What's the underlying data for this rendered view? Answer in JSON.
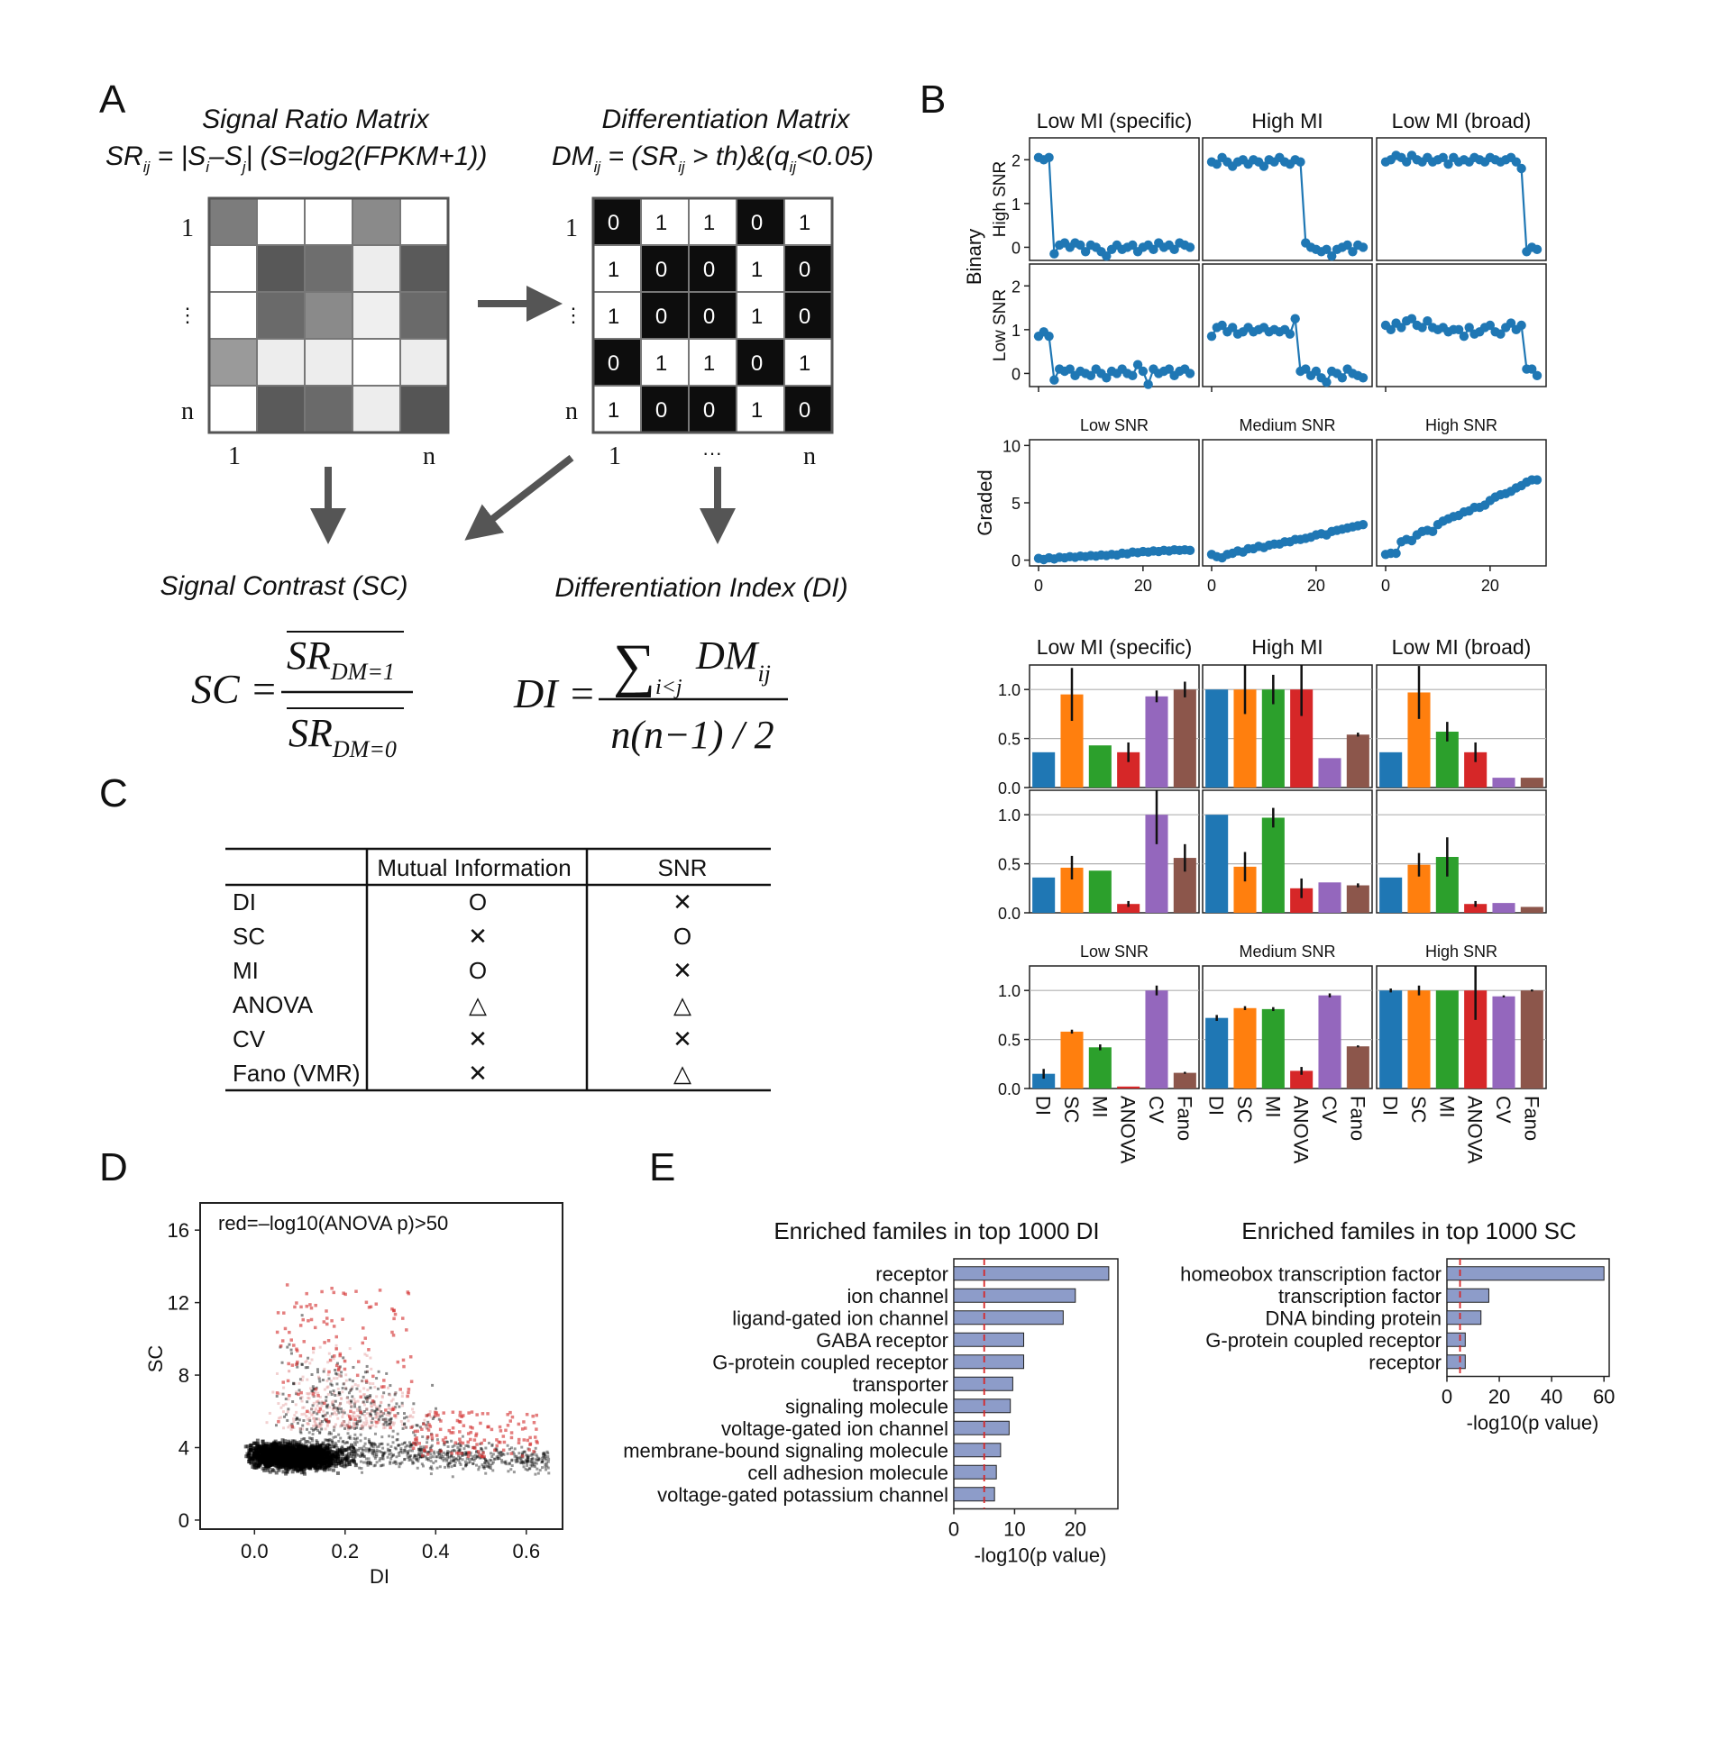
{
  "panels": {
    "A": "A",
    "B": "B",
    "C": "C",
    "D": "D",
    "E": "E"
  },
  "panel_a": {
    "sr_title": "Signal Ratio Matrix",
    "sr_formula": {
      "lhs": "SR",
      "lhs_sub": "ij",
      "mid": " = |S",
      "s1": "i",
      "minus": "–S",
      "s2": "j",
      "rest": "| (S=log2(FPKM+1))"
    },
    "dm_title": "Differentiation Matrix",
    "dm_formula": {
      "lhs": "DM",
      "lhs_sub": "ij",
      "mid": " = (SR",
      "sub2": "ij",
      "rest": " > th)&(q",
      "sub3": "ij",
      "end": "<0.05)"
    },
    "sr_grid": [
      [
        "#7c7c7c",
        "#ffffff",
        "#ffffff",
        "#8a8a8a",
        "#ffffff"
      ],
      [
        "#ffffff",
        "#585858",
        "#6e6e6e",
        "#ededed",
        "#5a5a5a"
      ],
      [
        "#ffffff",
        "#6a6a6a",
        "#8a8a8a",
        "#efefef",
        "#6a6a6a"
      ],
      [
        "#9a9a9a",
        "#ededed",
        "#ededed",
        "#ffffff",
        "#ededed"
      ],
      [
        "#ffffff",
        "#5a5a5a",
        "#6a6a6a",
        "#ededed",
        "#555555"
      ]
    ],
    "dm_grid": [
      [
        "0",
        "1",
        "1",
        "0",
        "1"
      ],
      [
        "1",
        "0",
        "0",
        "1",
        "0"
      ],
      [
        "1",
        "0",
        "0",
        "1",
        "0"
      ],
      [
        "0",
        "1",
        "1",
        "0",
        "1"
      ],
      [
        "1",
        "0",
        "0",
        "1",
        "0"
      ]
    ],
    "row_labels": [
      "1",
      "⋮",
      "n"
    ],
    "col_labels_sr": [
      "1",
      "n"
    ],
    "col_labels_dm": [
      "1",
      "···",
      "n"
    ],
    "sc_title": "Signal Contrast (SC)",
    "di_title": "Differentiation Index (DI)",
    "sc_formula": {
      "lhs": "SC =",
      "num": "SR",
      "num_sub": "DM=1",
      "den": "SR",
      "den_sub": "DM=0"
    },
    "di_formula": {
      "lhs": "DI =",
      "sum": "∑",
      "sum_sub": "i<j",
      "num": "DM",
      "num_sub": "ij",
      "den": "n(n−1) / 2"
    }
  },
  "panel_c": {
    "headers": [
      "",
      "Mutual Information",
      "SNR"
    ],
    "rows": [
      {
        "name": "DI",
        "mi": "O",
        "snr": "✕"
      },
      {
        "name": "SC",
        "mi": "✕",
        "snr": "O"
      },
      {
        "name": "MI",
        "mi": "O",
        "snr": "✕"
      },
      {
        "name": "ANOVA",
        "mi": "△",
        "snr": "△"
      },
      {
        "name": "CV",
        "mi": "✕",
        "snr": "✕"
      },
      {
        "name": "Fano (VMR)",
        "mi": "✕",
        "snr": "△"
      }
    ]
  },
  "chart_data": [
    {
      "id": "B-binary-line",
      "type": "line",
      "columns": [
        "Low MI (specific)",
        "High MI",
        "Low MI (broad)"
      ],
      "rows": [
        "High SNR",
        "Low SNR"
      ],
      "group_label": "Binary",
      "ylim": [
        -0.3,
        2.5
      ],
      "yticks": [
        0,
        1,
        2
      ],
      "x": [
        0,
        1,
        2,
        3,
        4,
        5,
        6,
        7,
        8,
        9,
        10,
        11,
        12,
        13,
        14,
        15,
        16,
        17,
        18,
        19,
        20,
        21,
        22,
        23,
        24,
        25,
        26,
        27,
        28,
        29
      ],
      "series": [
        {
          "values": [
            2.05,
            2.0,
            2.05,
            -0.15,
            0.05,
            0.1,
            0.0,
            0.1,
            0.05,
            -0.1,
            0.05,
            0.0,
            -0.1,
            -0.2,
            -0.05,
            0.05,
            -0.05,
            0.0,
            0.05,
            -0.1,
            0.0,
            0.05,
            -0.05,
            0.1,
            0.0,
            0.05,
            -0.05,
            0.1,
            0.05,
            0.0
          ]
        },
        {
          "values": [
            1.95,
            1.9,
            2.05,
            1.95,
            1.85,
            1.95,
            2.0,
            1.9,
            2.0,
            1.95,
            1.85,
            2.0,
            1.95,
            2.05,
            1.95,
            1.9,
            2.0,
            1.95,
            0.1,
            0.0,
            -0.05,
            -0.1,
            -0.05,
            -0.2,
            -0.05,
            0.0,
            0.05,
            -0.1,
            0.05,
            0.0
          ]
        },
        {
          "values": [
            1.95,
            2.0,
            2.1,
            2.05,
            1.95,
            2.1,
            2.0,
            1.95,
            2.05,
            1.95,
            2.0,
            2.05,
            1.9,
            2.05,
            1.95,
            2.0,
            1.95,
            2.05,
            2.0,
            1.95,
            2.05,
            2.0,
            1.95,
            2.0,
            2.05,
            1.95,
            1.8,
            -0.1,
            0.0,
            -0.05
          ]
        },
        {
          "values": [
            0.85,
            0.95,
            0.85,
            -0.15,
            0.1,
            0.05,
            0.1,
            -0.05,
            0.05,
            0.0,
            -0.05,
            0.1,
            0.0,
            -0.1,
            0.05,
            0.0,
            0.1,
            0.0,
            -0.05,
            0.2,
            0.05,
            -0.25,
            0.1,
            0.0,
            0.05,
            0.1,
            -0.05,
            0.05,
            0.1,
            0.0
          ]
        },
        {
          "values": [
            0.85,
            1.05,
            1.1,
            0.95,
            1.05,
            0.9,
            0.95,
            1.05,
            0.95,
            1.0,
            1.05,
            0.95,
            1.0,
            0.95,
            1.0,
            0.9,
            1.25,
            0.05,
            0.1,
            -0.05,
            0.05,
            -0.1,
            -0.2,
            0.05,
            0.0,
            -0.1,
            0.1,
            0.0,
            -0.05,
            -0.1
          ]
        },
        {
          "values": [
            1.1,
            1.0,
            1.15,
            1.05,
            1.2,
            1.25,
            1.1,
            1.05,
            1.2,
            1.05,
            1.0,
            1.05,
            0.95,
            1.0,
            1.0,
            0.85,
            1.05,
            0.9,
            0.95,
            1.05,
            1.1,
            0.95,
            0.9,
            1.05,
            1.15,
            1.0,
            1.1,
            0.1,
            0.1,
            -0.05
          ]
        }
      ]
    },
    {
      "id": "B-graded-line",
      "type": "line",
      "columns": [
        "Low SNR",
        "Medium SNR",
        "High SNR"
      ],
      "group_label": "Graded",
      "ylim": [
        -0.5,
        10.5
      ],
      "yticks": [
        0,
        5,
        10
      ],
      "xticks": [
        0,
        20
      ],
      "x": [
        0,
        1,
        2,
        3,
        4,
        5,
        6,
        7,
        8,
        9,
        10,
        11,
        12,
        13,
        14,
        15,
        16,
        17,
        18,
        19,
        20,
        21,
        22,
        23,
        24,
        25,
        26,
        27,
        28,
        29
      ],
      "series": [
        {
          "values": [
            0.15,
            0.05,
            0.2,
            0.1,
            0.25,
            0.2,
            0.3,
            0.25,
            0.35,
            0.3,
            0.4,
            0.35,
            0.45,
            0.4,
            0.5,
            0.45,
            0.6,
            0.55,
            0.7,
            0.65,
            0.75,
            0.7,
            0.8,
            0.75,
            0.85,
            0.8,
            0.9,
            0.85,
            0.9,
            0.85
          ]
        },
        {
          "values": [
            0.5,
            0.3,
            0.2,
            0.5,
            0.6,
            0.8,
            0.7,
            1.0,
            1.0,
            1.2,
            1.1,
            1.3,
            1.4,
            1.4,
            1.6,
            1.6,
            1.8,
            1.8,
            1.9,
            2.0,
            2.2,
            2.3,
            2.2,
            2.5,
            2.6,
            2.7,
            2.8,
            2.9,
            3.0,
            3.1
          ]
        },
        {
          "values": [
            0.5,
            0.6,
            0.6,
            1.6,
            1.8,
            1.7,
            2.2,
            2.5,
            2.6,
            2.5,
            3.1,
            3.4,
            3.6,
            3.8,
            3.9,
            4.2,
            4.3,
            4.6,
            4.6,
            4.8,
            5.2,
            5.5,
            5.7,
            5.8,
            6.0,
            6.3,
            6.5,
            6.8,
            7.0,
            7.0
          ]
        }
      ]
    },
    {
      "id": "B-metric-bars",
      "type": "bar",
      "categories": [
        "DI",
        "SC",
        "MI",
        "ANOVA",
        "CV",
        "Fano"
      ],
      "colors": [
        "#1f77b4",
        "#ff7f0e",
        "#2ca02c",
        "#d62728",
        "#9467bd",
        "#8c564b"
      ],
      "ylim": [
        0,
        1.25
      ],
      "yticks": [
        "0.0",
        "0.5",
        "1.0"
      ],
      "rows": [
        {
          "panels": [
            {
              "title": "Low MI (specific)",
              "values": [
                0.36,
                0.95,
                0.43,
                0.36,
                0.93,
                1.0
              ],
              "err": [
                0.0,
                0.27,
                0.0,
                0.1,
                0.06,
                0.08
              ]
            },
            {
              "title": "High MI",
              "values": [
                1.0,
                1.0,
                1.0,
                1.0,
                0.3,
                0.54
              ],
              "err": [
                0.0,
                0.25,
                0.15,
                0.27,
                0.0,
                0.02
              ]
            },
            {
              "title": "Low MI (broad)",
              "values": [
                0.36,
                0.97,
                0.57,
                0.36,
                0.1,
                0.1
              ],
              "err": [
                0.0,
                0.27,
                0.1,
                0.1,
                0.0,
                0.0
              ]
            }
          ]
        },
        {
          "panels": [
            {
              "values": [
                0.36,
                0.46,
                0.43,
                0.09,
                1.0,
                0.56
              ],
              "err": [
                0.0,
                0.12,
                0.0,
                0.03,
                0.3,
                0.14
              ]
            },
            {
              "values": [
                1.0,
                0.47,
                0.97,
                0.25,
                0.31,
                0.28
              ],
              "err": [
                0.0,
                0.15,
                0.1,
                0.1,
                0.0,
                0.02
              ]
            },
            {
              "values": [
                0.36,
                0.49,
                0.57,
                0.09,
                0.1,
                0.06
              ],
              "err": [
                0.0,
                0.12,
                0.2,
                0.03,
                0.0,
                0.0
              ]
            }
          ]
        },
        {
          "panels": [
            {
              "title": "Low SNR",
              "values": [
                0.15,
                0.58,
                0.42,
                0.02,
                1.0,
                0.16
              ],
              "err": [
                0.05,
                0.02,
                0.03,
                0.0,
                0.05,
                0.01
              ]
            },
            {
              "title": "Medium SNR",
              "values": [
                0.72,
                0.82,
                0.81,
                0.18,
                0.95,
                0.43
              ],
              "err": [
                0.03,
                0.02,
                0.02,
                0.04,
                0.02,
                0.01
              ]
            },
            {
              "title": "High SNR",
              "values": [
                1.0,
                1.0,
                1.0,
                1.0,
                0.94,
                1.0
              ],
              "err": [
                0.02,
                0.05,
                0.0,
                0.3,
                0.01,
                0.01
              ]
            }
          ]
        }
      ]
    },
    {
      "id": "D-scatter",
      "type": "scatter",
      "annotation": "red=–log10(ANOVA p)>50",
      "xlabel": "DI",
      "ylabel": "SC",
      "xlim": [
        -0.12,
        0.68
      ],
      "ylim": [
        -0.5,
        17.5
      ],
      "xticks": [
        "0.0",
        "0.2",
        "0.4",
        "0.6"
      ],
      "yticks": [
        "0",
        "4",
        "8",
        "12",
        "16"
      ],
      "colors": {
        "dense": "#000000",
        "red": "#d22a2a",
        "pink": "#e29a9a"
      }
    },
    {
      "id": "E-DI-bars",
      "type": "bar",
      "title": "Enriched familes in top 1000 DI",
      "xlabel": "-log10(p value)",
      "xlim": [
        0,
        27
      ],
      "xticks": [
        "0",
        "10",
        "20"
      ],
      "threshold": 5,
      "color": "#8d9cc9",
      "categories": [
        "receptor",
        "ion channel",
        "ligand-gated ion channel",
        "GABA receptor",
        "G-protein coupled receptor",
        "transporter",
        "signaling molecule",
        "voltage-gated ion channel",
        "membrane-bound signaling molecule",
        "cell adhesion molecule",
        "voltage-gated potassium channel"
      ],
      "values": [
        25.5,
        20,
        18,
        11.5,
        11.5,
        9.7,
        9.3,
        9.1,
        7.7,
        7,
        6.7
      ]
    },
    {
      "id": "E-SC-bars",
      "type": "bar",
      "title": "Enriched familes in top 1000 SC",
      "xlabel": "-log10(p value)",
      "xlim": [
        0,
        62
      ],
      "xticks": [
        "0",
        "20",
        "40",
        "60"
      ],
      "threshold": 5,
      "color": "#8d9cc9",
      "categories": [
        "homeobox transcription factor",
        "transcription factor",
        "DNA binding protein",
        "G-protein coupled receptor",
        "receptor"
      ],
      "values": [
        60,
        16,
        13,
        7,
        7
      ]
    }
  ]
}
